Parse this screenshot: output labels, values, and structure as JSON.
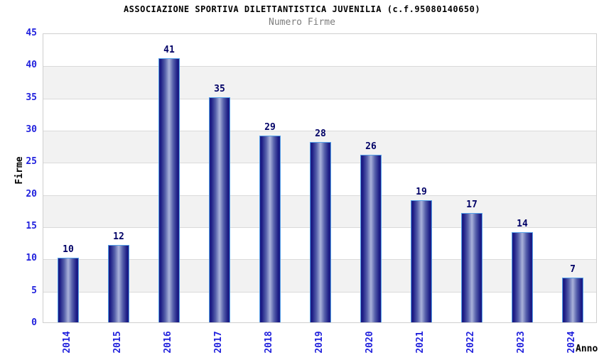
{
  "header": {
    "title": "ASSOCIAZIONE SPORTIVA DILETTANTISTICA JUVENILIA (c.f.95080140650)",
    "subtitle": "Numero Firme"
  },
  "chart_data": {
    "type": "bar",
    "title": "ASSOCIAZIONE SPORTIVA DILETTANTISTICA JUVENILIA (c.f.95080140650)",
    "subtitle": "Numero Firme",
    "categories": [
      "2014",
      "2015",
      "2016",
      "2017",
      "2018",
      "2019",
      "2020",
      "2021",
      "2022",
      "2023",
      "2024"
    ],
    "values": [
      10,
      12,
      41,
      35,
      29,
      28,
      26,
      19,
      17,
      14,
      7
    ],
    "xlabel": "Anno",
    "ylabel": "Firme",
    "ylim": [
      0,
      45
    ],
    "ytick_step": 5,
    "yticks": [
      0,
      5,
      10,
      15,
      20,
      25,
      30,
      35,
      40,
      45
    ],
    "grid": true,
    "legend": "none",
    "colors": {
      "bar_dark": "#1c1c85",
      "bar_mid": "#5660ab",
      "bar_light": "#aab2da",
      "bar_border": "#54a0e8",
      "value_label": "#000066",
      "tick_label": "#2222dd",
      "axis_title": "#000000",
      "title": "#000000",
      "subtitle": "#7d7d7d",
      "band": "#f2f2f2",
      "gridline": "#dadada",
      "plot_border": "#cfcfcf",
      "background": "#ffffff"
    }
  }
}
